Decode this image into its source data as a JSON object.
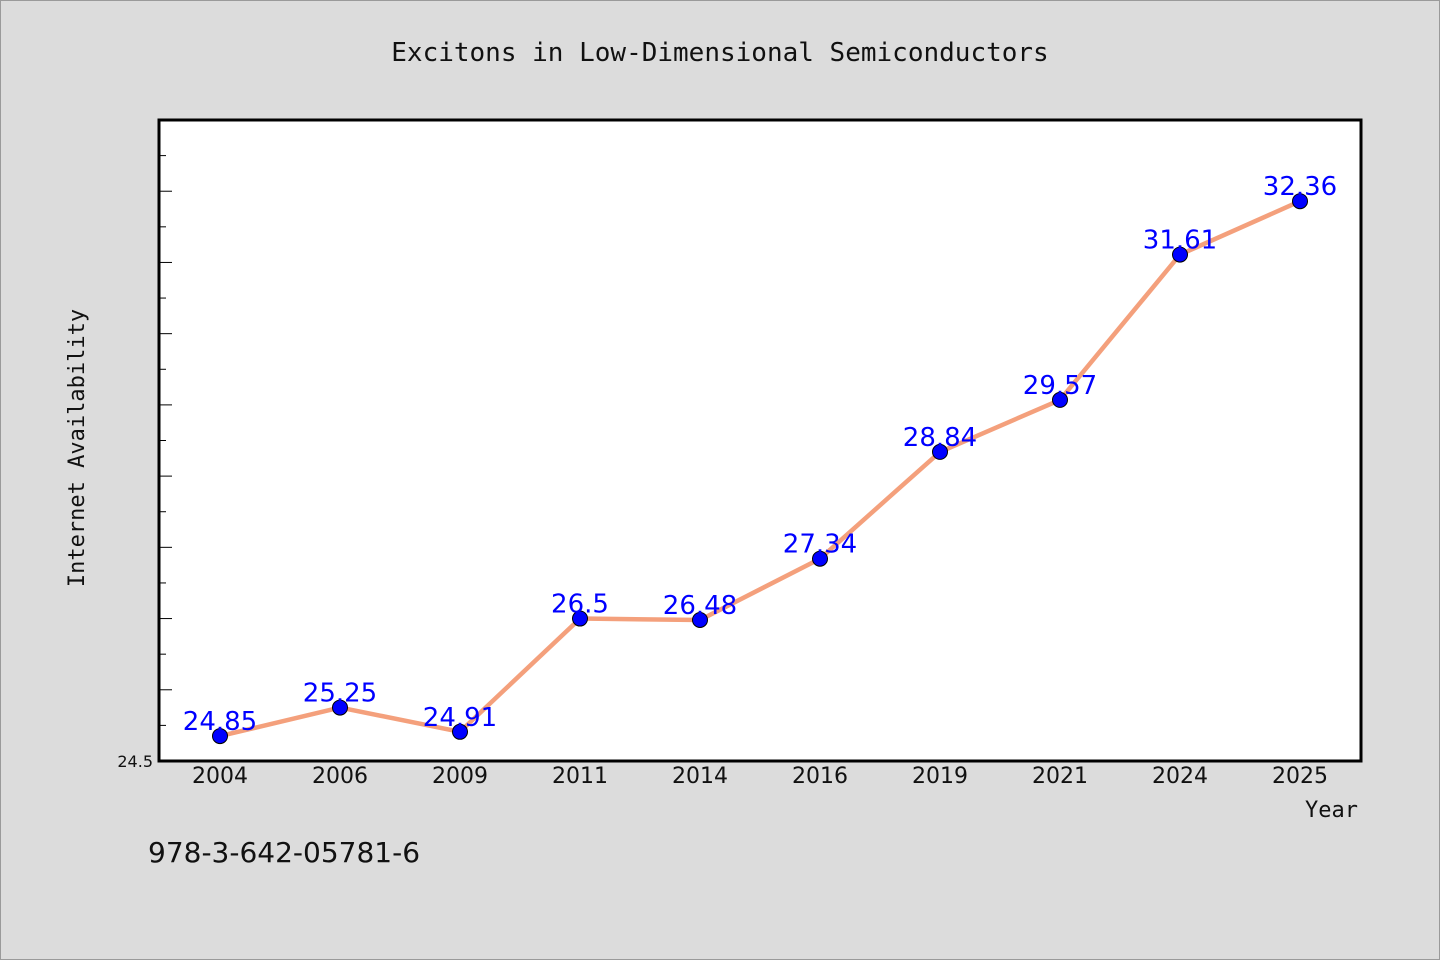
{
  "chart_data": {
    "type": "line",
    "title": "Excitons in Low-Dimensional Semiconductors",
    "xlabel": "Year",
    "ylabel": "Internet Availability",
    "categories": [
      "2004",
      "2006",
      "2009",
      "2011",
      "2014",
      "2016",
      "2019",
      "2021",
      "2024",
      "2025"
    ],
    "series": [
      {
        "values": [
          24.85,
          25.25,
          24.91,
          26.5,
          26.48,
          27.34,
          28.84,
          29.57,
          31.61,
          32.36
        ]
      }
    ],
    "data_labels": [
      "24.85",
      "25.25",
      "24.91",
      "26.5",
      "26.48",
      "27.34",
      "28.84",
      "29.57",
      "31.61",
      "32.36"
    ],
    "ylim": [
      24.5,
      33.5
    ],
    "y_tick_labels": [
      "24.5"
    ],
    "grid": false,
    "legend": "none",
    "line_color": "#f4a07c",
    "marker_color": "#0000ff",
    "label_color": "#0000ff"
  },
  "footer": {
    "text": "978-3-642-05781-6"
  }
}
